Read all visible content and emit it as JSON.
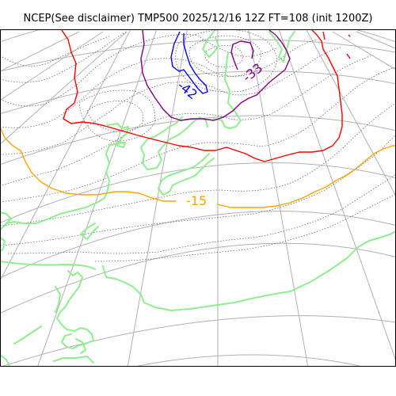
{
  "title": "NCEP(See disclaimer) TMP500 2025/12/16 12Z FT=108 (init 1200Z)",
  "isotherm_labels": [
    {
      "text": "-42",
      "color": "#0000ff"
    },
    {
      "text": "-33",
      "color": "#800080"
    },
    {
      "text": "-15",
      "color": "#ffa500"
    }
  ],
  "colors": {
    "coastline": "#90ee90",
    "graticule": "#b0b0b0",
    "geopotential_contours": "#555555",
    "isotherm_-42": "#0000ff",
    "isotherm_-33": "#800080",
    "isotherm_-27": "#ff0000",
    "isotherm_-15": "#ffa500"
  }
}
